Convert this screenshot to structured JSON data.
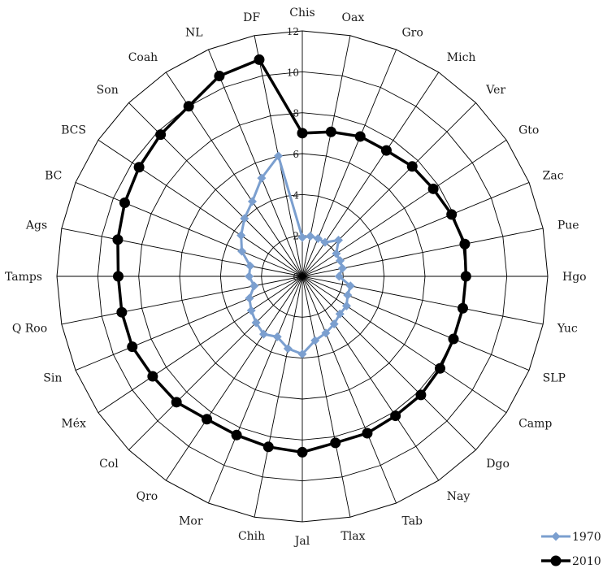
{
  "chart_data": {
    "type": "radar",
    "title": "",
    "categories": [
      "Chis",
      "Oax",
      "Gro",
      "Mich",
      "Ver",
      "Gto",
      "Zac",
      "Pue",
      "Hgo",
      "Yuc",
      "SLP",
      "Camp",
      "Dgo",
      "Nay",
      "Tab",
      "Tlax",
      "Jal",
      "Chih",
      "Mor",
      "Qro",
      "Col",
      "Méx",
      "Sin",
      "Q Roo",
      "Tamps",
      "Ags",
      "BC",
      "BCS",
      "Son",
      "Coah",
      "NL",
      "DF"
    ],
    "rlim": [
      0,
      12
    ],
    "ticks": [
      "0",
      "2",
      "4",
      "6",
      "8",
      "10",
      "12"
    ],
    "grid": true,
    "legend_position": "bottom-right",
    "series": [
      {
        "name": "1970",
        "color": "#7b9fcf",
        "marker": "diamond",
        "values": [
          1.9,
          2.0,
          2.0,
          2.0,
          2.5,
          2.0,
          2.0,
          2.0,
          1.8,
          2.4,
          2.4,
          2.6,
          2.6,
          2.8,
          3.0,
          3.2,
          3.8,
          3.6,
          3.2,
          3.4,
          3.2,
          3.0,
          2.8,
          2.4,
          2.6,
          2.6,
          3.2,
          3.6,
          4.0,
          4.4,
          5.2,
          6.0
        ]
      },
      {
        "name": "2010",
        "color": "#000000",
        "marker": "circle",
        "values": [
          7.0,
          7.2,
          7.4,
          7.4,
          7.6,
          7.7,
          7.9,
          8.1,
          8.0,
          8.0,
          8.0,
          8.1,
          8.2,
          8.2,
          8.3,
          8.3,
          8.6,
          8.5,
          8.4,
          8.4,
          8.7,
          8.8,
          9.0,
          9.0,
          9.0,
          9.2,
          9.4,
          9.6,
          9.8,
          10.0,
          10.6,
          10.8
        ]
      }
    ]
  }
}
